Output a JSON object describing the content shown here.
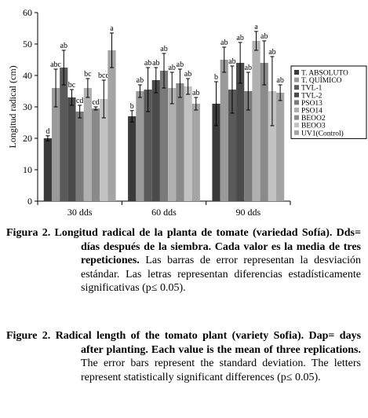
{
  "chart_data": {
    "type": "bar",
    "ylabel": "Longitud radical (cm)",
    "xlabel": "",
    "ylim": [
      0,
      60
    ],
    "yticks": [
      0,
      10,
      20,
      30,
      40,
      50,
      60
    ],
    "categories": [
      "30 dds",
      "60 dds",
      "90 dds"
    ],
    "legend_position": "right",
    "series": [
      {
        "name": "T. ABSOLUTO",
        "color": "#3a3a3a",
        "values": [
          20.0,
          27.0,
          31.0
        ],
        "errors": [
          0.8,
          1.8,
          7.0
        ],
        "letters": [
          "d",
          "b",
          "b"
        ]
      },
      {
        "name": "T. QUÍMICO",
        "color": "#9a9a9a",
        "values": [
          36.0,
          35.0,
          45.0
        ],
        "errors": [
          6.0,
          2.0,
          4.0
        ],
        "letters": [
          "abc",
          "ab",
          "ab"
        ]
      },
      {
        "name": "TVL-1",
        "color": "#5a5a5a",
        "values": [
          42.5,
          35.5,
          35.5
        ],
        "errors": [
          5.5,
          7.0,
          7.5
        ],
        "letters": [
          "ab",
          "ab",
          "ab"
        ]
      },
      {
        "name": "TVL-2",
        "color": "#4a4a4a",
        "values": [
          33.0,
          38.5,
          44.0
        ],
        "errors": [
          2.5,
          4.0,
          6.5
        ],
        "letters": [
          "bc",
          "ab",
          "ab"
        ]
      },
      {
        "name": "PSO13",
        "color": "#7a7a7a",
        "values": [
          28.5,
          41.5,
          35.0
        ],
        "errors": [
          2.0,
          5.5,
          6.0
        ],
        "letters": [
          "cd",
          "ab",
          "ab"
        ]
      },
      {
        "name": "PSO14",
        "color": "#b0b0b0",
        "values": [
          36.0,
          36.0,
          51.0
        ],
        "errors": [
          3.0,
          5.0,
          3.0
        ],
        "letters": [
          "bc",
          "ab",
          "a"
        ]
      },
      {
        "name": "BEOO2",
        "color": "#8a8a8a",
        "values": [
          29.5,
          37.5,
          44.0
        ],
        "errors": [
          0.5,
          4.5,
          7.0
        ],
        "letters": [
          "cd",
          "ab",
          "ab"
        ]
      },
      {
        "name": "BEOO3",
        "color": "#c2c2c2",
        "values": [
          32.5,
          36.5,
          35.0
        ],
        "errors": [
          6.0,
          2.5,
          11.0
        ],
        "letters": [
          "bcd",
          "ab",
          "ab"
        ]
      },
      {
        "name": "UV1(Control)",
        "color": "#a4a4a4",
        "values": [
          48.0,
          31.0,
          34.5
        ],
        "errors": [
          5.5,
          2.0,
          2.5
        ],
        "letters": [
          "a",
          "ab",
          "ab"
        ]
      }
    ]
  },
  "captions": {
    "es": {
      "label": "Figura 2.",
      "bold": "Longitud radical de la planta de tomate (variedad Sofía). Dds= días después de la siembra. Cada valor es la media de tres repeticiones.",
      "normal": " Las barras de error representan la desviación estándar. Las letras representan diferencias estadísticamente significativas (p≤ 0.05)."
    },
    "en": {
      "label": "Figure 2.",
      "bold": "Radical length of the tomato plant (variety Sofia). Dap= days after planting. Each value is the mean of three replications.",
      "normal": " The error bars represent the standard deviation. The letters represent statistically significant differences (p≤ 0.05)."
    }
  }
}
